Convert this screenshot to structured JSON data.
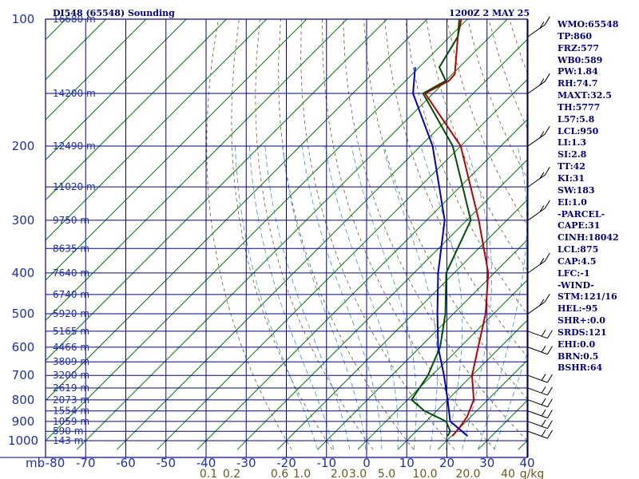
{
  "header": {
    "title": "DI548 (65548) Sounding",
    "time": "1200Z  2 MAY 25"
  },
  "chart_data": {
    "type": "line",
    "title": "DI548 (65548) Sounding",
    "xlabel": "",
    "ylabel": "mb",
    "xlim": [
      -80,
      40
    ],
    "ylim": [
      1000,
      100
    ],
    "y_scale": "log",
    "grid": true,
    "x_ticks": [
      "-80",
      "-70",
      "-60",
      "-50",
      "-40",
      "-30",
      "-20",
      "-10",
      "0",
      "10",
      "20",
      "30",
      "40"
    ],
    "pressure_ticks": [
      "100",
      "200",
      "300",
      "400",
      "500",
      "600",
      "700",
      "800",
      "900",
      "1000"
    ],
    "height_labels": [
      {
        "p": 100,
        "label": "16680 m"
      },
      {
        "p": 150,
        "label": "14200 m"
      },
      {
        "p": 200,
        "label": "12490 m"
      },
      {
        "p": 250,
        "label": "11020 m"
      },
      {
        "p": 300,
        "label": "9750 m"
      },
      {
        "p": 350,
        "label": "8635 m"
      },
      {
        "p": 400,
        "label": "7640 m"
      },
      {
        "p": 450,
        "label": "6740 m"
      },
      {
        "p": 500,
        "label": "5920 m"
      },
      {
        "p": 550,
        "label": "5165 m"
      },
      {
        "p": 600,
        "label": "4466 m"
      },
      {
        "p": 650,
        "label": "3809 m"
      },
      {
        "p": 700,
        "label": "3200 m"
      },
      {
        "p": 750,
        "label": "2619 m"
      },
      {
        "p": 800,
        "label": "2073 m"
      },
      {
        "p": 850,
        "label": "1554 m"
      },
      {
        "p": 900,
        "label": "1059 m"
      },
      {
        "p": 950,
        "label": "590 m"
      },
      {
        "p": 1000,
        "label": "143 m"
      }
    ],
    "mixing_ratio_labels": [
      "0.1",
      "0.2",
      "0.6",
      "1.0",
      "2.0",
      "3.0",
      "5.0",
      "10.0",
      "20.0",
      "40"
    ],
    "mixing_ratio_unit": "g/kg",
    "series": [
      {
        "color": "#c00000",
        "points": [
          [
            20.2,
            975
          ],
          [
            19.8,
            925
          ],
          [
            19.0,
            875
          ],
          [
            16.5,
            800
          ],
          [
            10.0,
            700
          ],
          [
            4.5,
            600
          ],
          [
            -2.0,
            500
          ],
          [
            -11.5,
            400
          ],
          [
            -27.0,
            300
          ],
          [
            -50.0,
            200
          ],
          [
            -72.0,
            150
          ],
          [
            -69.2,
            140
          ],
          [
            -69.4,
            135
          ],
          [
            -78.0,
            110
          ],
          [
            -81.5,
            100
          ]
        ]
      },
      {
        "color": "#005000",
        "points": [
          [
            19.0,
            975
          ],
          [
            18.5,
            950
          ],
          [
            15.0,
            900
          ],
          [
            7.0,
            850
          ],
          [
            1.0,
            800
          ],
          [
            -1.0,
            700
          ],
          [
            -5.0,
            600
          ],
          [
            -12.0,
            500
          ],
          [
            -22.0,
            400
          ],
          [
            -29.0,
            300
          ],
          [
            -52.0,
            200
          ],
          [
            -72.5,
            150
          ],
          [
            -70.0,
            140
          ],
          [
            -75.0,
            130
          ],
          [
            -78.0,
            110
          ],
          [
            -82.0,
            100
          ]
        ]
      },
      {
        "color": "#0000c0",
        "points": [
          [
            24.0,
            975
          ],
          [
            16.0,
            900
          ],
          [
            10.0,
            800
          ],
          [
            3.0,
            700
          ],
          [
            -5.5,
            600
          ],
          [
            -14.0,
            500
          ],
          [
            -24.0,
            400
          ],
          [
            -35.5,
            300
          ],
          [
            -57.0,
            200
          ],
          [
            -75.0,
            150
          ],
          [
            -81.0,
            130
          ]
        ]
      }
    ]
  },
  "indices": [
    "WMO:65548",
    "TP:860",
    "FRZ:577",
    "WB0:589",
    "PW:1.84",
    "RH:74.7",
    "MAXT:32.5",
    "TH:5777",
    "L57:5.8",
    "LCL:950",
    "LI:1.3",
    "SI:2.8",
    "TT:42",
    "KI:31",
    "SW:183",
    "EI:1.0",
    "-PARCEL-",
    "CAPE:31",
    "CINH:18042",
    "LCL:875",
    "CAP:4.5",
    "LFC:-1",
    "-WIND-",
    "STM:121/16",
    "HEL:-95",
    "SHR+:0.0",
    "SRDS:121",
    "EHI:0.0",
    "BRN:0.5",
    "BSHR:64"
  ],
  "colors": {
    "grid": "#0000a0",
    "isotherm": "#008000",
    "dry_adiabat": "#6b5a1a",
    "moist_adiabat": "#3399cc",
    "text": "#1e2fb0",
    "wind": "#000000"
  }
}
